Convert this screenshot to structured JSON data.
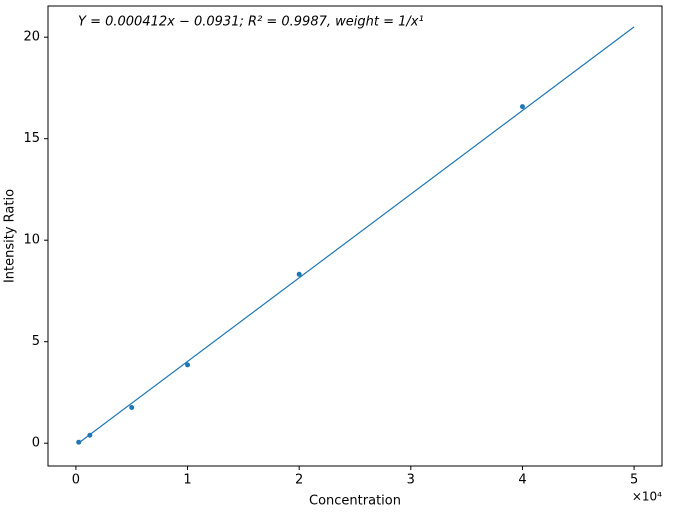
{
  "chart_data": {
    "type": "scatter",
    "annotation": "Y = 0.000412x − 0.0931; R² = 0.9987, weight = 1/x¹",
    "x_label": "Concentration",
    "y_label": "Intensity Ratio",
    "x_offset_label": "×10⁴",
    "xlim": [
      -2500,
      52500
    ],
    "ylim": [
      -1.123,
      21.537
    ],
    "xticks": [
      {
        "value": 0,
        "label": "0"
      },
      {
        "value": 10000,
        "label": "1"
      },
      {
        "value": 20000,
        "label": "2"
      },
      {
        "value": 30000,
        "label": "3"
      },
      {
        "value": 40000,
        "label": "4"
      },
      {
        "value": 50000,
        "label": "5"
      }
    ],
    "yticks": [
      0,
      5,
      10,
      15,
      20
    ],
    "series": [
      {
        "type": "scatter",
        "color": "#1f77b4",
        "x": [
          250,
          1250,
          5000,
          10000,
          20000,
          40000
        ],
        "values": [
          0.05,
          0.39,
          1.76,
          3.86,
          8.32,
          16.58
        ]
      },
      {
        "type": "line",
        "color": "#1f77b4",
        "x": [
          250,
          50000
        ],
        "values": [
          0.01,
          20.51
        ]
      }
    ]
  }
}
